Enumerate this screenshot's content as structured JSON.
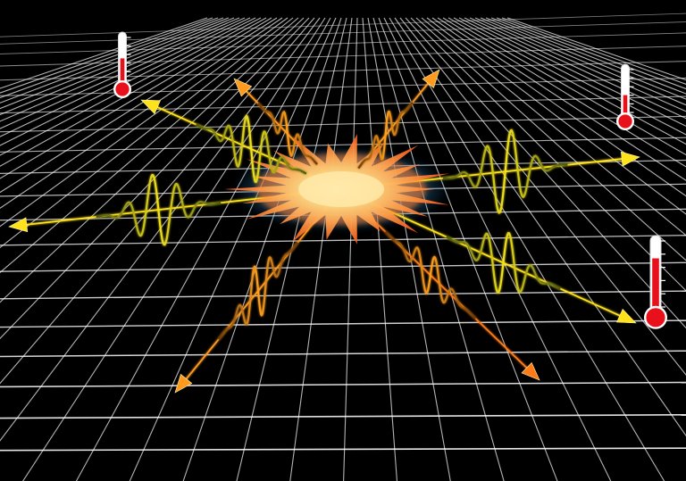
{
  "scene": {
    "background_color": "#000000",
    "grid_color": "#ffffff",
    "burst_core_color": "#ffd27a",
    "burst_outer_color": "#ff6a1e",
    "halo_color": "#4aa8d8",
    "wave_colors": [
      "#f0e020",
      "#ffb020",
      "#ff7a18"
    ],
    "arrow_colors": [
      "#ffe21a",
      "#ffb21a",
      "#ff8a1a"
    ],
    "thermometer_fill_color": "#e8101a",
    "thermometer_count": 3,
    "emitted_wave_count": 8,
    "thermometer_levels": [
      0.55,
      0.45,
      0.75
    ]
  }
}
